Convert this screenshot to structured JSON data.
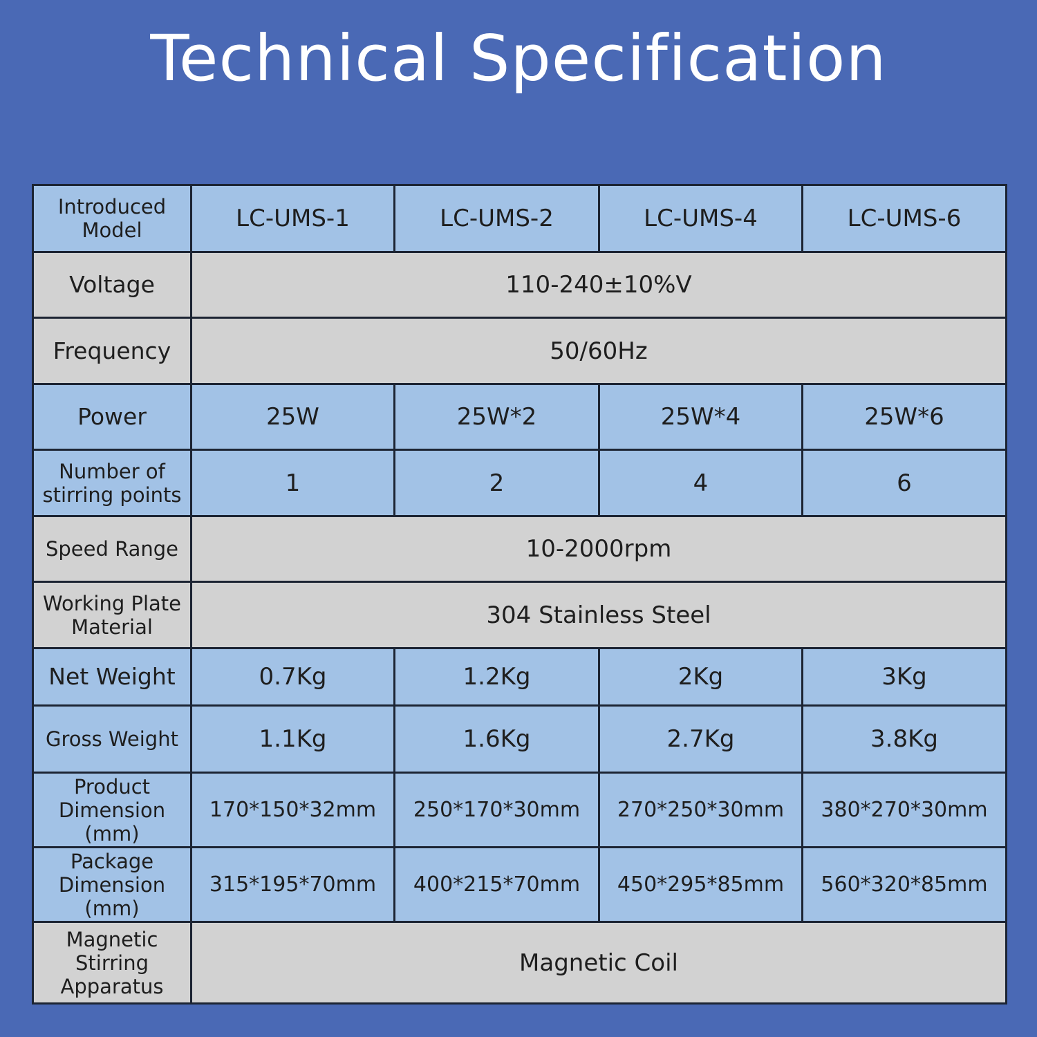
{
  "title": "Technical Specification",
  "table": {
    "header": {
      "label": "Introduced Model",
      "models": [
        "LC-UMS-1",
        "LC-UMS-2",
        "LC-UMS-4",
        "LC-UMS-6"
      ]
    },
    "voltage": {
      "label": "Voltage",
      "value": "110-240±10%V"
    },
    "frequency": {
      "label": "Frequency",
      "value": "50/60Hz"
    },
    "power": {
      "label": "Power",
      "values": [
        "25W",
        "25W*2",
        "25W*4",
        "25W*6"
      ]
    },
    "stirring_points": {
      "label": "Number of stirring points",
      "values": [
        "1",
        "2",
        "4",
        "6"
      ]
    },
    "speed_range": {
      "label": "Speed Range",
      "value": "10-2000rpm"
    },
    "plate_material": {
      "label": "Working Plate Material",
      "value": "304 Stainless Steel"
    },
    "net_weight": {
      "label": "Net Weight",
      "values": [
        "0.7Kg",
        "1.2Kg",
        "2Kg",
        "3Kg"
      ]
    },
    "gross_weight": {
      "label": "Gross Weight",
      "values": [
        "1.1Kg",
        "1.6Kg",
        "2.7Kg",
        "3.8Kg"
      ]
    },
    "product_dimension": {
      "label": "Product Dimension (mm)",
      "values": [
        "170*150*32mm",
        "250*170*30mm",
        "270*250*30mm",
        "380*270*30mm"
      ]
    },
    "package_dimension": {
      "label": "Package Dimension (mm)",
      "values": [
        "315*195*70mm",
        "400*215*70mm",
        "450*295*85mm",
        "560*320*85mm"
      ]
    },
    "stirring_apparatus": {
      "label": "Magnetic Stirring Apparatus",
      "value": "Magnetic Coil"
    }
  },
  "colors": {
    "background": "#4a69b5",
    "blue_row": "#a2c2e6",
    "gray_row": "#d2d2d2",
    "border": "#1c2433"
  }
}
